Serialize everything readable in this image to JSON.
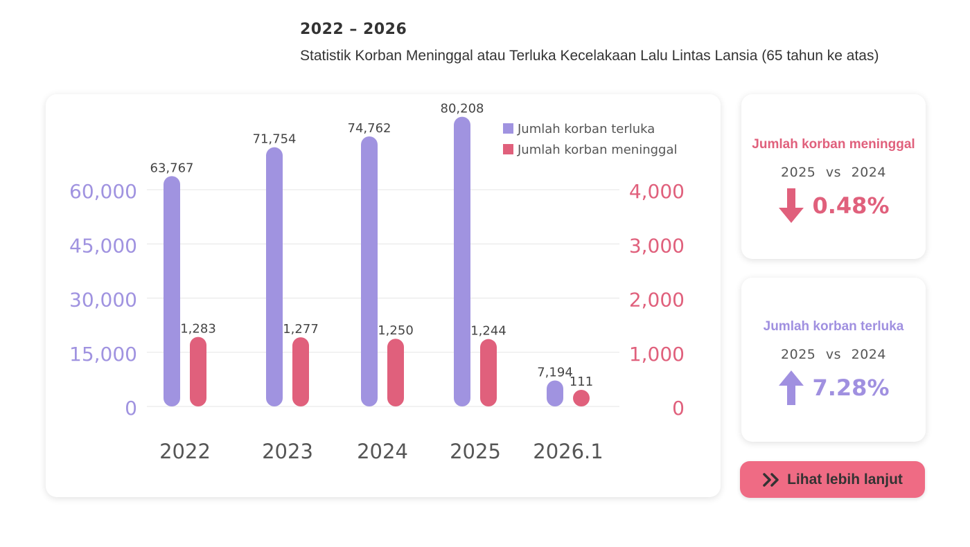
{
  "header": {
    "period": "2022 – 2026",
    "subtitle": "Statistik Korban Meninggal atau Terluka Kecelakaan Lalu Lintas Lansia (65 tahun ke atas)"
  },
  "chart_data": {
    "type": "bar",
    "categories": [
      "2022",
      "2023",
      "2024",
      "2025",
      "2026.1"
    ],
    "series": [
      {
        "name": "Jumlah korban terluka",
        "axis": "left",
        "color": "#a093e0",
        "values": [
          63767,
          71754,
          74762,
          80208,
          7194
        ],
        "labels": [
          "63,767",
          "71,754",
          "74,762",
          "80,208",
          "7,194"
        ]
      },
      {
        "name": "Jumlah korban meninggal",
        "axis": "right",
        "color": "#e0607c",
        "values": [
          1283,
          1277,
          1250,
          1244,
          111
        ],
        "labels": [
          "1,283",
          "1,277",
          "1,250",
          "1,244",
          "111"
        ]
      }
    ],
    "left_axis": {
      "ticks": [
        "0",
        "15,000",
        "30,000",
        "45,000",
        "60,000"
      ],
      "tick_values": [
        0,
        15000,
        30000,
        45000,
        60000
      ],
      "color": "#a093e0"
    },
    "right_axis": {
      "ticks": [
        "0",
        "1,000",
        "2,000",
        "3,000",
        "4,000"
      ],
      "tick_values": [
        0,
        1000,
        2000,
        3000,
        4000
      ],
      "color": "#e0607c"
    },
    "grid": true,
    "legend_position": "top-right"
  },
  "stats": [
    {
      "title": "Jumlah korban meninggal",
      "comparison": "2025 vs 2024",
      "direction": "down",
      "icon": "arrow-down-icon",
      "value": "0.48%",
      "color": "#e0607c"
    },
    {
      "title": "Jumlah korban terluka",
      "comparison": "2025 vs 2024",
      "direction": "up",
      "icon": "arrow-up-icon",
      "value": "7.28%",
      "color": "#a090e0"
    }
  ],
  "button": {
    "label": "Lihat lebih lanjut",
    "icon": "double-chevron-right-icon"
  }
}
